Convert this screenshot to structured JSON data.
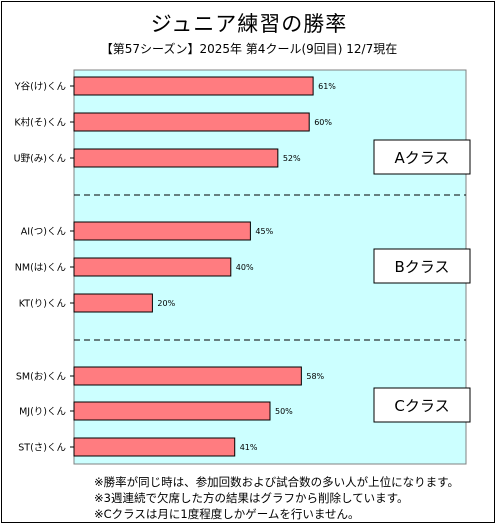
{
  "title": "ジュニア練習の勝率",
  "subtitle": "【第57シーズン】2025年 第4クール(9回目) 12/7現在",
  "chart_data": {
    "type": "bar",
    "orientation": "horizontal",
    "categories": [
      "Y谷(け)くん",
      "K村(そ)くん",
      "U野(み)くん",
      "AI(つ)くん",
      "NM(は)くん",
      "KT(り)くん",
      "SM(お)くん",
      "MJ(り)くん",
      "ST(さ)くん"
    ],
    "values": [
      61,
      60,
      52,
      45,
      40,
      20,
      58,
      50,
      41
    ],
    "value_labels": [
      "61%",
      "60%",
      "52%",
      "45%",
      "40%",
      "20%",
      "58%",
      "50%",
      "41%"
    ],
    "groups": [
      {
        "label": "Aクラス",
        "indices": [
          0,
          1,
          2
        ]
      },
      {
        "label": "Bクラス",
        "indices": [
          3,
          4,
          5
        ]
      },
      {
        "label": "Cクラス",
        "indices": [
          6,
          7,
          8
        ]
      }
    ],
    "xlim": [
      0,
      100
    ],
    "grid": false,
    "colors": {
      "bar": "#ff7c80",
      "plot_bg": "#ccffff",
      "bar_border": "#000000"
    }
  },
  "notes": [
    "※勝率が同じ時は、参加回数および試合数の多い人が上位になります。",
    "※3週連続で欠席した方の結果はグラフから削除しています。",
    "※Cクラスは月に1度程度しかゲームを行いません。"
  ]
}
